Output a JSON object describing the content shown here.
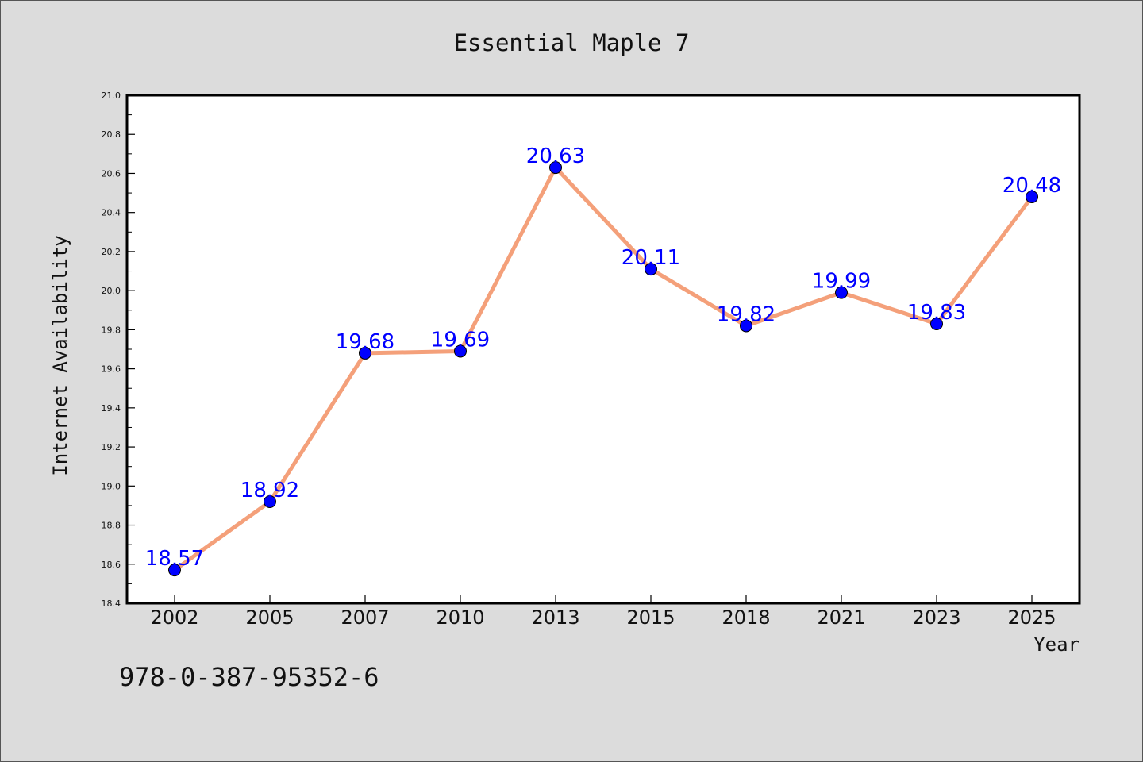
{
  "chart_data": {
    "type": "line",
    "title": "Essential Maple 7",
    "xlabel": "Year",
    "ylabel": "Internet Availability",
    "categories": [
      "2002",
      "2005",
      "2007",
      "2010",
      "2013",
      "2015",
      "2018",
      "2021",
      "2023",
      "2025"
    ],
    "values": [
      18.57,
      18.92,
      19.68,
      19.69,
      20.63,
      20.11,
      19.82,
      19.99,
      19.83,
      20.48
    ],
    "value_labels": [
      "18.57",
      "18.92",
      "19.68",
      "19.69",
      "20.63",
      "20.11",
      "19.82",
      "19.99",
      "19.83",
      "20.48"
    ],
    "ylim": [
      18.4,
      21.0
    ],
    "yticks": [
      "18.4",
      "18.6",
      "18.8",
      "19.0",
      "19.2",
      "19.4",
      "19.6",
      "19.8",
      "20.0",
      "20.2",
      "20.4",
      "20.6",
      "20.8",
      "21.0"
    ],
    "grid": false,
    "line_color": "#f4a07a",
    "marker_color": "#0000ff",
    "label_color": "#0000ff"
  },
  "annotation": {
    "isbn": "978-0-387-95352-6"
  }
}
